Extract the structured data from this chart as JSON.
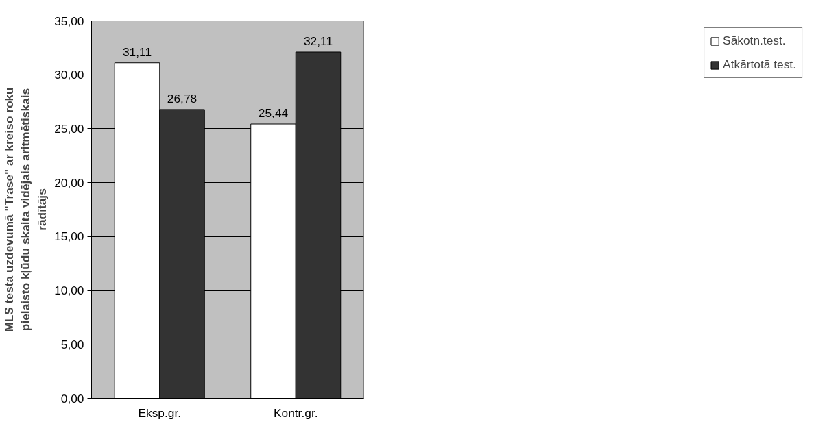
{
  "chart_data": {
    "type": "bar",
    "ylabel": "MLS testa uzdevumā \"Trase\" ar kreiso roku pielaisto kļūdu skaita vidējais aritmētiskais rādītājs",
    "categories": [
      "Eksp.gr.",
      "Kontr.gr."
    ],
    "series": [
      {
        "name": "Sākotn.test.",
        "color": "#ffffff",
        "values": [
          31.11,
          25.44
        ],
        "value_labels": [
          "31,11",
          "25,44"
        ]
      },
      {
        "name": "Atkārtotā test.",
        "color": "#333333",
        "values": [
          26.78,
          32.11
        ],
        "value_labels": [
          "26,78",
          "32,11"
        ]
      }
    ],
    "ylim": [
      0,
      35
    ],
    "yticks": [
      {
        "value": 0,
        "label": "0,00"
      },
      {
        "value": 5,
        "label": "5,00"
      },
      {
        "value": 10,
        "label": "10,00"
      },
      {
        "value": 15,
        "label": "15,00"
      },
      {
        "value": 20,
        "label": "20,00"
      },
      {
        "value": 25,
        "label": "25,00"
      },
      {
        "value": 30,
        "label": "30,00"
      },
      {
        "value": 35,
        "label": "35,00"
      }
    ],
    "grid": "y",
    "legend": "right"
  }
}
